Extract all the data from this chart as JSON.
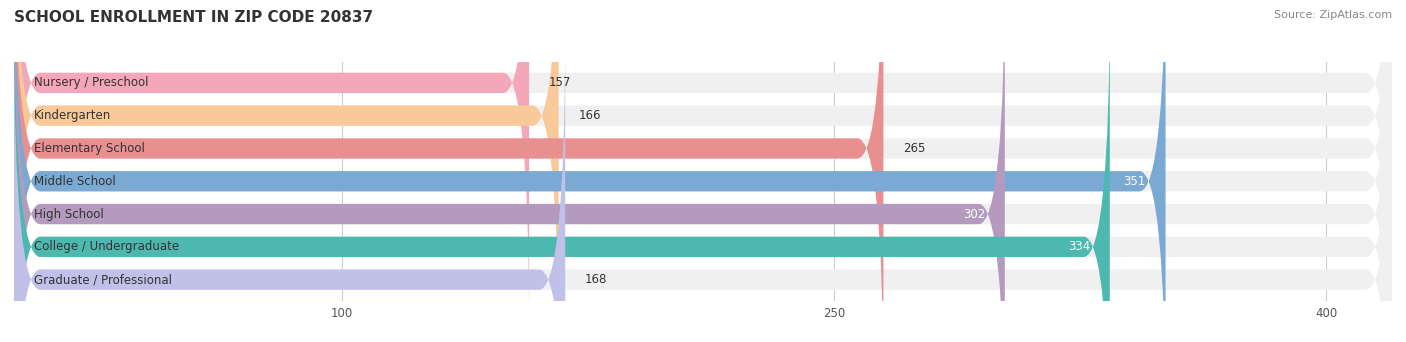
{
  "title": "SCHOOL ENROLLMENT IN ZIP CODE 20837",
  "source": "Source: ZipAtlas.com",
  "categories": [
    "Nursery / Preschool",
    "Kindergarten",
    "Elementary School",
    "Middle School",
    "High School",
    "College / Undergraduate",
    "Graduate / Professional"
  ],
  "values": [
    157,
    166,
    265,
    351,
    302,
    334,
    168
  ],
  "bar_colors": [
    "#f4a7b9",
    "#f9c99a",
    "#e89090",
    "#7aaad4",
    "#b49abf",
    "#4db8b0",
    "#c0c0e8"
  ],
  "bar_bg_color": "#f0f0f0",
  "label_colors": [
    "#555555",
    "#555555",
    "#555555",
    "#ffffff",
    "#ffffff",
    "#ffffff",
    "#555555"
  ],
  "xlim": [
    0,
    420
  ],
  "xticks": [
    100,
    250,
    400
  ],
  "title_fontsize": 11,
  "source_fontsize": 8,
  "label_fontsize": 8.5,
  "value_fontsize": 8.5,
  "bar_height": 0.62,
  "background_color": "#ffffff"
}
